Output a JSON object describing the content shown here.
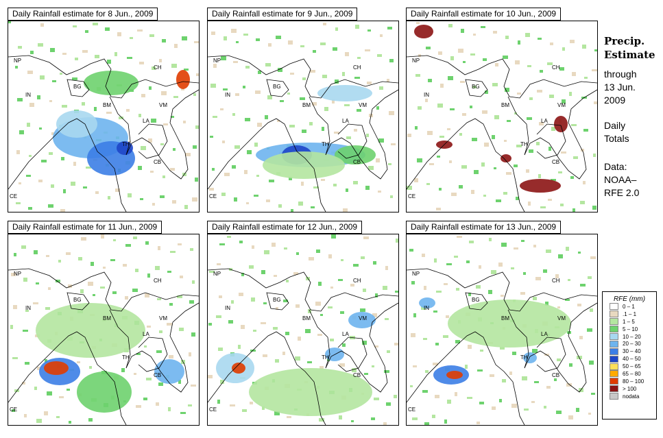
{
  "panels": [
    {
      "title": "Daily Rainfall estimate for  8 Jun., 2009"
    },
    {
      "title": "Daily Rainfall estimate for  9 Jun., 2009"
    },
    {
      "title": "Daily Rainfall estimate for  10 Jun., 2009"
    },
    {
      "title": "Daily Rainfall estimate for  11 Jun., 2009"
    },
    {
      "title": "Daily Rainfall estimate for  12 Jun., 2009"
    },
    {
      "title": "Daily Rainfall estimate for  13 Jun., 2009"
    }
  ],
  "country_labels": [
    "NP",
    "CH",
    "IN",
    "BG",
    "BM",
    "VM",
    "LA",
    "TH",
    "CB",
    "CE"
  ],
  "sidebar": {
    "title_line1": "Precip.",
    "title_line2": "Estimate",
    "through": "through",
    "date_line1": "13 Jun.",
    "date_line2": "2009",
    "daily1": "Daily",
    "daily2": "Totals",
    "data1": "Data:",
    "data2": "NOAA–",
    "data3": "RFE 2.0"
  },
  "legend": {
    "title": "RFE (mm)",
    "items": [
      {
        "label": "0 – 1",
        "color": "#ffffff"
      },
      {
        "label": ".1 – 1",
        "color": "#e8d9c0"
      },
      {
        "label": "1 – 5",
        "color": "#b4e6a0"
      },
      {
        "label": "5 – 10",
        "color": "#6ed26e"
      },
      {
        "label": "10 – 20",
        "color": "#a8d8f0"
      },
      {
        "label": "20 – 30",
        "color": "#6eb4ee"
      },
      {
        "label": "30 – 40",
        "color": "#3c7ee6"
      },
      {
        "label": "40 – 50",
        "color": "#1e46c8"
      },
      {
        "label": "50 – 65",
        "color": "#ffe05a"
      },
      {
        "label": "65 – 80",
        "color": "#ffaa00"
      },
      {
        "label": "80 – 100",
        "color": "#e03c00"
      },
      {
        "label": "> 100",
        "color": "#8c1414"
      },
      {
        "label": "nodata",
        "color": "#c8c8c8"
      }
    ]
  }
}
